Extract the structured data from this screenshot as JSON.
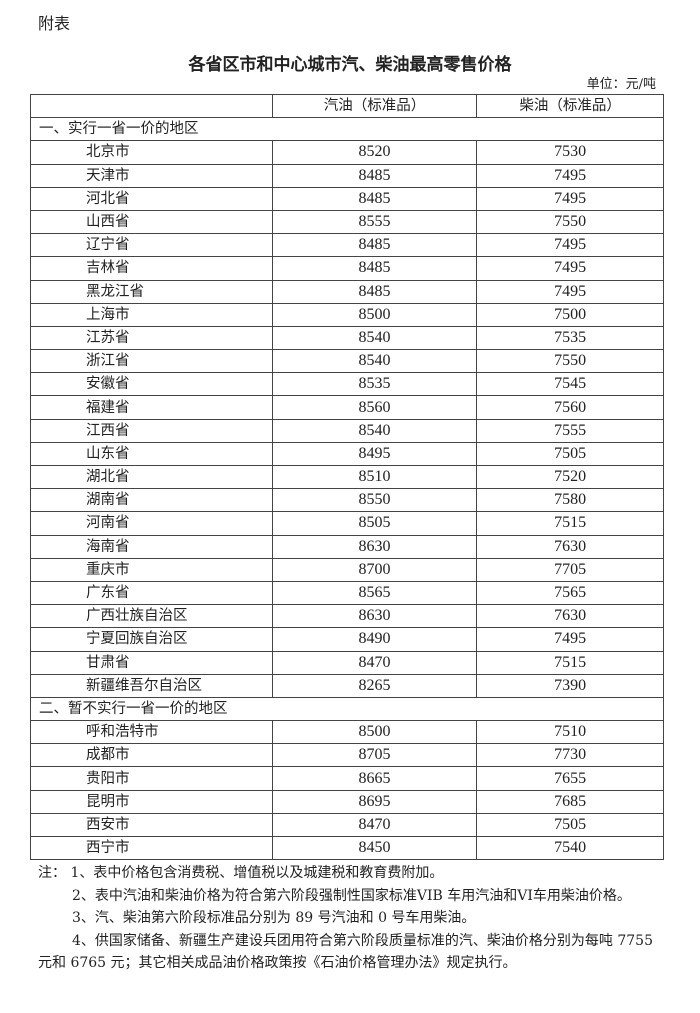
{
  "attachment_label": "附表",
  "title": "各省区市和中心城市汽、柴油最高零售价格",
  "unit": "单位：元/吨",
  "table": {
    "columns": [
      "",
      "汽油（标准品）",
      "柴油（标准品）"
    ],
    "sections": [
      {
        "label": "一、实行一省一价的地区",
        "rows": [
          {
            "region": "北京市",
            "gasoline": "8520",
            "diesel": "7530"
          },
          {
            "region": "天津市",
            "gasoline": "8485",
            "diesel": "7495"
          },
          {
            "region": "河北省",
            "gasoline": "8485",
            "diesel": "7495"
          },
          {
            "region": "山西省",
            "gasoline": "8555",
            "diesel": "7550"
          },
          {
            "region": "辽宁省",
            "gasoline": "8485",
            "diesel": "7495"
          },
          {
            "region": "吉林省",
            "gasoline": "8485",
            "diesel": "7495"
          },
          {
            "region": "黑龙江省",
            "gasoline": "8485",
            "diesel": "7495"
          },
          {
            "region": "上海市",
            "gasoline": "8500",
            "diesel": "7500"
          },
          {
            "region": "江苏省",
            "gasoline": "8540",
            "diesel": "7535"
          },
          {
            "region": "浙江省",
            "gasoline": "8540",
            "diesel": "7550"
          },
          {
            "region": "安徽省",
            "gasoline": "8535",
            "diesel": "7545"
          },
          {
            "region": "福建省",
            "gasoline": "8560",
            "diesel": "7560"
          },
          {
            "region": "江西省",
            "gasoline": "8540",
            "diesel": "7555"
          },
          {
            "region": "山东省",
            "gasoline": "8495",
            "diesel": "7505"
          },
          {
            "region": "湖北省",
            "gasoline": "8510",
            "diesel": "7520"
          },
          {
            "region": "湖南省",
            "gasoline": "8550",
            "diesel": "7580"
          },
          {
            "region": "河南省",
            "gasoline": "8505",
            "diesel": "7515"
          },
          {
            "region": "海南省",
            "gasoline": "8630",
            "diesel": "7630"
          },
          {
            "region": "重庆市",
            "gasoline": "8700",
            "diesel": "7705"
          },
          {
            "region": "广东省",
            "gasoline": "8565",
            "diesel": "7565"
          },
          {
            "region": "广西壮族自治区",
            "gasoline": "8630",
            "diesel": "7630"
          },
          {
            "region": "宁夏回族自治区",
            "gasoline": "8490",
            "diesel": "7495"
          },
          {
            "region": "甘肃省",
            "gasoline": "8470",
            "diesel": "7515"
          },
          {
            "region": "新疆维吾尔自治区",
            "gasoline": "8265",
            "diesel": "7390"
          }
        ]
      },
      {
        "label": "二、暂不实行一省一价的地区",
        "rows": [
          {
            "region": "呼和浩特市",
            "gasoline": "8500",
            "diesel": "7510"
          },
          {
            "region": "成都市",
            "gasoline": "8705",
            "diesel": "7730"
          },
          {
            "region": "贵阳市",
            "gasoline": "8665",
            "diesel": "7655"
          },
          {
            "region": "昆明市",
            "gasoline": "8695",
            "diesel": "7685"
          },
          {
            "region": "西安市",
            "gasoline": "8470",
            "diesel": "7505"
          },
          {
            "region": "西宁市",
            "gasoline": "8450",
            "diesel": "7540"
          }
        ]
      }
    ]
  },
  "notes": [
    "注：  1、表中价格包含消费税、增值税以及城建税和教育费附加。",
    "2、表中汽油和柴油价格为符合第六阶段强制性国家标准VIB 车用汽油和VI车用柴油价格。",
    "3、汽、柴油第六阶段标准品分别为 89 号汽油和 0 号车用柴油。",
    "4、供国家储备、新疆生产建设兵团用符合第六阶段质量标准的汽、柴油价格分别为每吨 7755 元和 6765 元；其它相关成品油价格政策按《石油价格管理办法》规定执行。"
  ]
}
